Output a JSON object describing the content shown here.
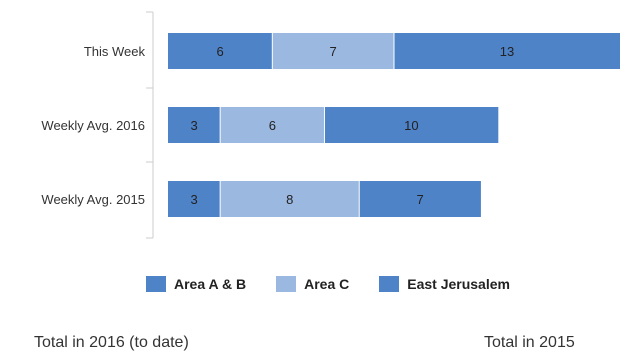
{
  "chart_data": {
    "type": "bar",
    "orientation": "horizontal",
    "stacked": true,
    "categories": [
      "This Week",
      "Weekly Avg. 2016",
      "Weekly Avg. 2015"
    ],
    "series": [
      {
        "name": "Area A & B",
        "values": [
          6,
          3,
          3
        ],
        "color": "#4f83c7"
      },
      {
        "name": "Area C",
        "values": [
          7,
          6,
          8
        ],
        "color": "#9bb8e0"
      },
      {
        "name": "East Jerusalem",
        "values": [
          13,
          10,
          7
        ],
        "color": "#4f83c7"
      }
    ],
    "xlim": [
      0,
      26
    ],
    "title": "",
    "xlabel": "",
    "ylabel": "",
    "grid": false,
    "legend_position": "bottom"
  },
  "legend": {
    "items": [
      {
        "label": "Area A & B",
        "color": "#4f83c7"
      },
      {
        "label": "Area C",
        "color": "#9bb8e0"
      },
      {
        "label": "East Jerusalem",
        "color": "#4f83c7"
      }
    ]
  },
  "footer": {
    "left": "Total in 2016 (to date)",
    "right": "Total in 2015"
  }
}
